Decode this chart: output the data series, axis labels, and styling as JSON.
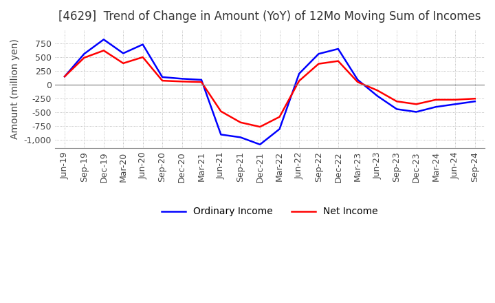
{
  "title": "[4629]  Trend of Change in Amount (YoY) of 12Mo Moving Sum of Incomes",
  "ylabel": "Amount (million yen)",
  "x_labels": [
    "Jun-19",
    "Sep-19",
    "Dec-19",
    "Mar-20",
    "Jun-20",
    "Sep-20",
    "Dec-20",
    "Mar-21",
    "Jun-21",
    "Sep-21",
    "Dec-21",
    "Mar-22",
    "Jun-22",
    "Sep-22",
    "Dec-22",
    "Mar-23",
    "Jun-23",
    "Sep-23",
    "Dec-23",
    "Mar-24",
    "Jun-24",
    "Sep-24"
  ],
  "ordinary_income": [
    150,
    560,
    820,
    570,
    730,
    140,
    110,
    90,
    -900,
    -950,
    -1080,
    -800,
    200,
    560,
    650,
    90,
    -200,
    -440,
    -490,
    -400,
    -350,
    -300
  ],
  "net_income": [
    150,
    490,
    620,
    390,
    500,
    75,
    60,
    50,
    -480,
    -680,
    -760,
    -580,
    70,
    380,
    430,
    50,
    -100,
    -300,
    -350,
    -270,
    -270,
    -250
  ],
  "ordinary_income_color": "#0000FF",
  "net_income_color": "#FF0000",
  "ylim": [
    -1150,
    1000
  ],
  "yticks": [
    -1000,
    -750,
    -500,
    -250,
    0,
    250,
    500,
    750
  ],
  "background_color": "#ffffff",
  "grid_color": "#aaaaaa",
  "title_fontsize": 12,
  "label_fontsize": 10,
  "tick_fontsize": 9,
  "line_width": 1.8
}
